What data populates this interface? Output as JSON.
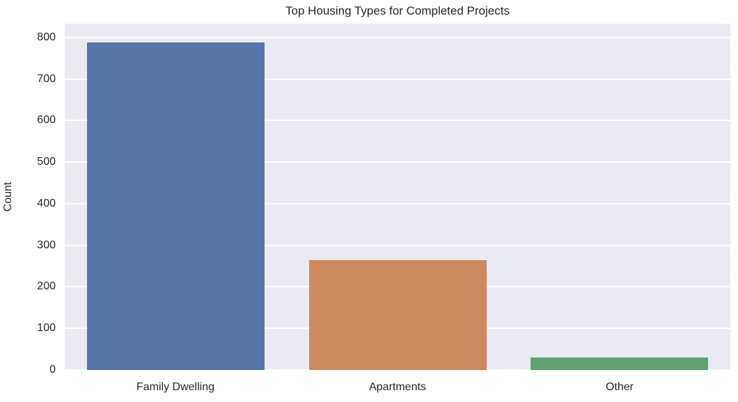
{
  "chart_data": {
    "type": "bar",
    "title": "Top Housing Types for Completed Projects",
    "xlabel": "",
    "ylabel": "Count",
    "categories": [
      "Family Dwelling",
      "Apartments",
      "Other"
    ],
    "values": [
      788,
      265,
      30
    ],
    "ylim": [
      0,
      833
    ],
    "yticks": [
      0,
      100,
      200,
      300,
      400,
      500,
      600,
      700,
      800
    ],
    "bar_colors": [
      "#5876A8",
      "#CD8A5E",
      "#5FA272"
    ],
    "bar_width_fraction": 0.8,
    "plot_background_color": "#EAEAF2",
    "gridline_color": "#FFFFFF",
    "text_color": "#262626",
    "grid": "horizontal",
    "legend": "none"
  }
}
